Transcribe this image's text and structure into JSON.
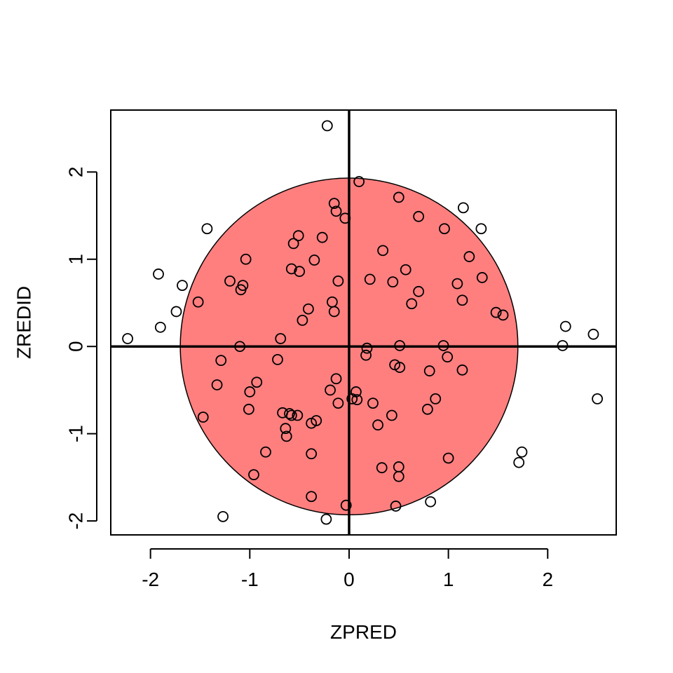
{
  "chart_data": {
    "type": "scatter",
    "title": "",
    "xlabel": "ZPRED",
    "ylabel": "ZREDID",
    "xlim": [
      -2.4,
      2.69
    ],
    "ylim": [
      -2.16,
      2.71
    ],
    "x_ticks": [
      -2,
      -1,
      0,
      1,
      2
    ],
    "y_ticks": [
      -2,
      -1,
      0,
      1,
      2
    ],
    "x_tick_labels": [
      "-2",
      "-1",
      "0",
      "1",
      "2"
    ],
    "y_tick_labels": [
      "-2",
      "-1",
      "0",
      "1",
      "2"
    ],
    "grid": false,
    "legend": "none",
    "reference_lines": {
      "x": 0,
      "y": 0,
      "color": "#000000"
    },
    "ellipse": {
      "center": [
        0,
        0
      ],
      "radius_x": 1.7,
      "radius_y": 1.93,
      "fill": "#FF0000",
      "fill_opacity": 0.5,
      "stroke": "#000000"
    },
    "marker": {
      "shape": "open-circle",
      "color": "#000000"
    },
    "points": [
      [
        -0.22,
        2.53
      ],
      [
        0.1,
        1.89
      ],
      [
        0.5,
        1.71
      ],
      [
        -0.15,
        1.64
      ],
      [
        -0.13,
        1.55
      ],
      [
        1.15,
        1.59
      ],
      [
        0.7,
        1.49
      ],
      [
        -0.04,
        1.47
      ],
      [
        -1.43,
        1.35
      ],
      [
        0.96,
        1.35
      ],
      [
        1.33,
        1.35
      ],
      [
        -0.51,
        1.27
      ],
      [
        -0.27,
        1.25
      ],
      [
        -0.56,
        1.18
      ],
      [
        0.34,
        1.1
      ],
      [
        1.21,
        1.03
      ],
      [
        -1.04,
        1.0
      ],
      [
        -0.35,
        0.99
      ],
      [
        -0.58,
        0.89
      ],
      [
        0.57,
        0.88
      ],
      [
        -0.5,
        0.86
      ],
      [
        -1.92,
        0.83
      ],
      [
        1.34,
        0.79
      ],
      [
        0.21,
        0.77
      ],
      [
        -1.2,
        0.75
      ],
      [
        -0.11,
        0.75
      ],
      [
        0.44,
        0.74
      ],
      [
        1.09,
        0.72
      ],
      [
        -1.68,
        0.7
      ],
      [
        -1.07,
        0.7
      ],
      [
        -1.09,
        0.65
      ],
      [
        0.7,
        0.63
      ],
      [
        1.14,
        0.53
      ],
      [
        -1.52,
        0.51
      ],
      [
        -0.17,
        0.51
      ],
      [
        0.63,
        0.49
      ],
      [
        -0.41,
        0.43
      ],
      [
        -1.74,
        0.4
      ],
      [
        -0.15,
        0.4
      ],
      [
        1.48,
        0.39
      ],
      [
        1.55,
        0.36
      ],
      [
        -0.47,
        0.3
      ],
      [
        2.18,
        0.23
      ],
      [
        -1.9,
        0.22
      ],
      [
        2.46,
        0.14
      ],
      [
        -2.23,
        0.09
      ],
      [
        -0.69,
        0.09
      ],
      [
        2.15,
        0.01
      ],
      [
        -1.1,
        0.0
      ],
      [
        0.51,
        0.01
      ],
      [
        0.95,
        0.01
      ],
      [
        0.18,
        -0.02
      ],
      [
        0.17,
        -0.1
      ],
      [
        0.99,
        -0.12
      ],
      [
        -0.72,
        -0.15
      ],
      [
        -1.29,
        -0.16
      ],
      [
        0.46,
        -0.21
      ],
      [
        0.51,
        -0.24
      ],
      [
        0.81,
        -0.28
      ],
      [
        1.14,
        -0.27
      ],
      [
        -0.13,
        -0.37
      ],
      [
        -0.93,
        -0.41
      ],
      [
        -1.33,
        -0.44
      ],
      [
        -0.19,
        -0.5
      ],
      [
        -1.0,
        -0.52
      ],
      [
        0.07,
        -0.52
      ],
      [
        0.03,
        -0.6
      ],
      [
        0.08,
        -0.61
      ],
      [
        0.87,
        -0.6
      ],
      [
        -0.11,
        -0.65
      ],
      [
        0.24,
        -0.65
      ],
      [
        -1.01,
        -0.72
      ],
      [
        0.79,
        -0.72
      ],
      [
        -0.67,
        -0.76
      ],
      [
        -0.6,
        -0.77
      ],
      [
        -0.58,
        -0.79
      ],
      [
        -0.52,
        -0.79
      ],
      [
        0.43,
        -0.79
      ],
      [
        -1.47,
        -0.81
      ],
      [
        -0.33,
        -0.85
      ],
      [
        -0.38,
        -0.88
      ],
      [
        0.29,
        -0.9
      ],
      [
        -0.64,
        -0.94
      ],
      [
        -0.63,
        -1.03
      ],
      [
        2.5,
        -0.6
      ],
      [
        -0.84,
        -1.21
      ],
      [
        1.74,
        -1.21
      ],
      [
        -0.38,
        -1.23
      ],
      [
        1.0,
        -1.28
      ],
      [
        1.71,
        -1.33
      ],
      [
        0.33,
        -1.39
      ],
      [
        0.5,
        -1.38
      ],
      [
        -0.96,
        -1.47
      ],
      [
        0.5,
        -1.49
      ],
      [
        -0.38,
        -1.72
      ],
      [
        0.82,
        -1.78
      ],
      [
        -0.03,
        -1.82
      ],
      [
        0.47,
        -1.83
      ],
      [
        -1.27,
        -1.95
      ],
      [
        -0.23,
        -1.98
      ]
    ]
  }
}
